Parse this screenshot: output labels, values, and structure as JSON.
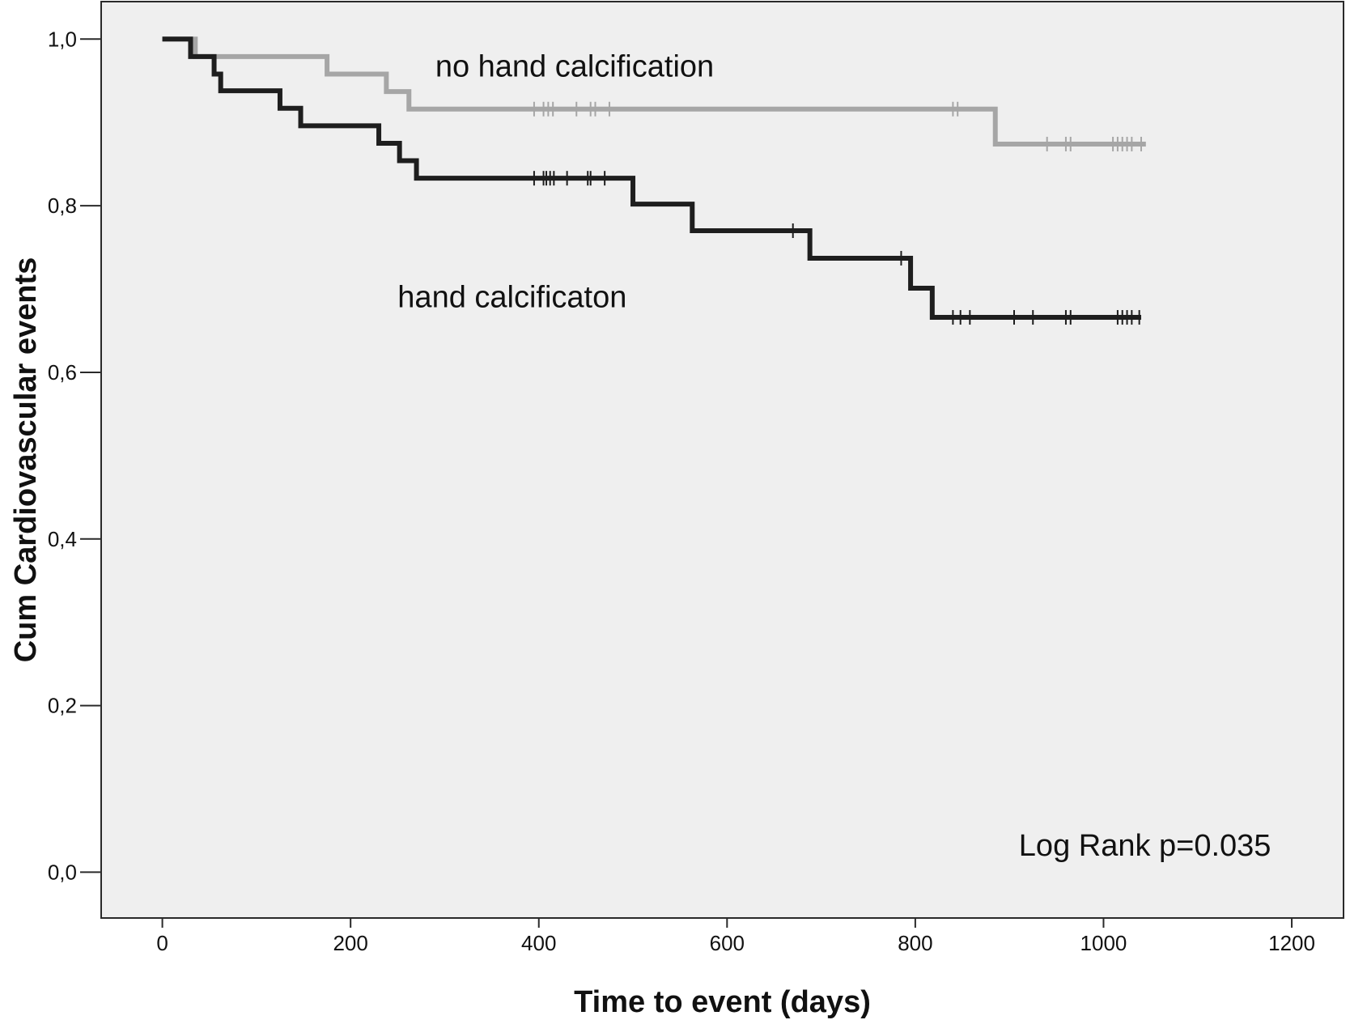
{
  "chart_data": {
    "type": "line",
    "subtype": "kaplan-meier-step",
    "title": "",
    "xlabel": "Time to event (days)",
    "ylabel": "Cum Cardiovascular events",
    "xlim": [
      -65,
      1255
    ],
    "ylim": [
      -0.055,
      1.045
    ],
    "xticks": [
      0,
      200,
      400,
      600,
      800,
      1000,
      1200
    ],
    "xtick_labels": [
      "0",
      "200",
      "400",
      "600",
      "800",
      "1000",
      "1200"
    ],
    "yticks": [
      0.0,
      0.2,
      0.4,
      0.6,
      0.8,
      1.0
    ],
    "ytick_labels": [
      "0,0",
      "0,2",
      "0,4",
      "0,6",
      "0,8",
      "1,0"
    ],
    "grid": false,
    "background": "#efefef",
    "series": [
      {
        "name": "no hand calcification",
        "color": "#a6a6a6",
        "steps": [
          [
            0,
            1.0
          ],
          [
            35,
            0.979
          ],
          [
            175,
            0.958
          ],
          [
            238,
            0.937
          ],
          [
            262,
            0.916
          ],
          [
            885,
            0.874
          ],
          [
            1045,
            0.874
          ]
        ],
        "censored": [
          [
            395,
            0.916
          ],
          [
            405,
            0.916
          ],
          [
            410,
            0.916
          ],
          [
            415,
            0.916
          ],
          [
            440,
            0.916
          ],
          [
            455,
            0.916
          ],
          [
            460,
            0.916
          ],
          [
            475,
            0.916
          ],
          [
            840,
            0.916
          ],
          [
            845,
            0.916
          ],
          [
            940,
            0.874
          ],
          [
            960,
            0.874
          ],
          [
            965,
            0.874
          ],
          [
            1010,
            0.874
          ],
          [
            1015,
            0.874
          ],
          [
            1020,
            0.874
          ],
          [
            1025,
            0.874
          ],
          [
            1030,
            0.874
          ],
          [
            1040,
            0.874
          ]
        ]
      },
      {
        "name": "hand calcificaton",
        "color": "#1e1e1e",
        "steps": [
          [
            0,
            1.0
          ],
          [
            30,
            0.979
          ],
          [
            55,
            0.958
          ],
          [
            62,
            0.938
          ],
          [
            125,
            0.917
          ],
          [
            147,
            0.896
          ],
          [
            230,
            0.875
          ],
          [
            252,
            0.854
          ],
          [
            270,
            0.833
          ],
          [
            500,
            0.802
          ],
          [
            563,
            0.77
          ],
          [
            688,
            0.737
          ],
          [
            795,
            0.701
          ],
          [
            818,
            0.666
          ],
          [
            1040,
            0.666
          ]
        ],
        "censored": [
          [
            395,
            0.833
          ],
          [
            405,
            0.833
          ],
          [
            408,
            0.833
          ],
          [
            412,
            0.833
          ],
          [
            416,
            0.833
          ],
          [
            430,
            0.833
          ],
          [
            452,
            0.833
          ],
          [
            455,
            0.833
          ],
          [
            470,
            0.833
          ],
          [
            670,
            0.77
          ],
          [
            785,
            0.737
          ],
          [
            840,
            0.666
          ],
          [
            848,
            0.666
          ],
          [
            858,
            0.666
          ],
          [
            905,
            0.666
          ],
          [
            925,
            0.666
          ],
          [
            960,
            0.666
          ],
          [
            965,
            0.666
          ],
          [
            1015,
            0.666
          ],
          [
            1020,
            0.666
          ],
          [
            1025,
            0.666
          ],
          [
            1030,
            0.666
          ],
          [
            1038,
            0.666
          ]
        ]
      }
    ],
    "annotations": [
      {
        "id": "label-no-hand",
        "text": "no hand calcification",
        "x": 290,
        "y": 0.955
      },
      {
        "id": "label-hand",
        "text": "hand calcificaton",
        "x": 250,
        "y": 0.678
      },
      {
        "id": "log-rank",
        "text": "Log Rank p=0.035",
        "x": 910,
        "y": 0.02
      }
    ]
  }
}
